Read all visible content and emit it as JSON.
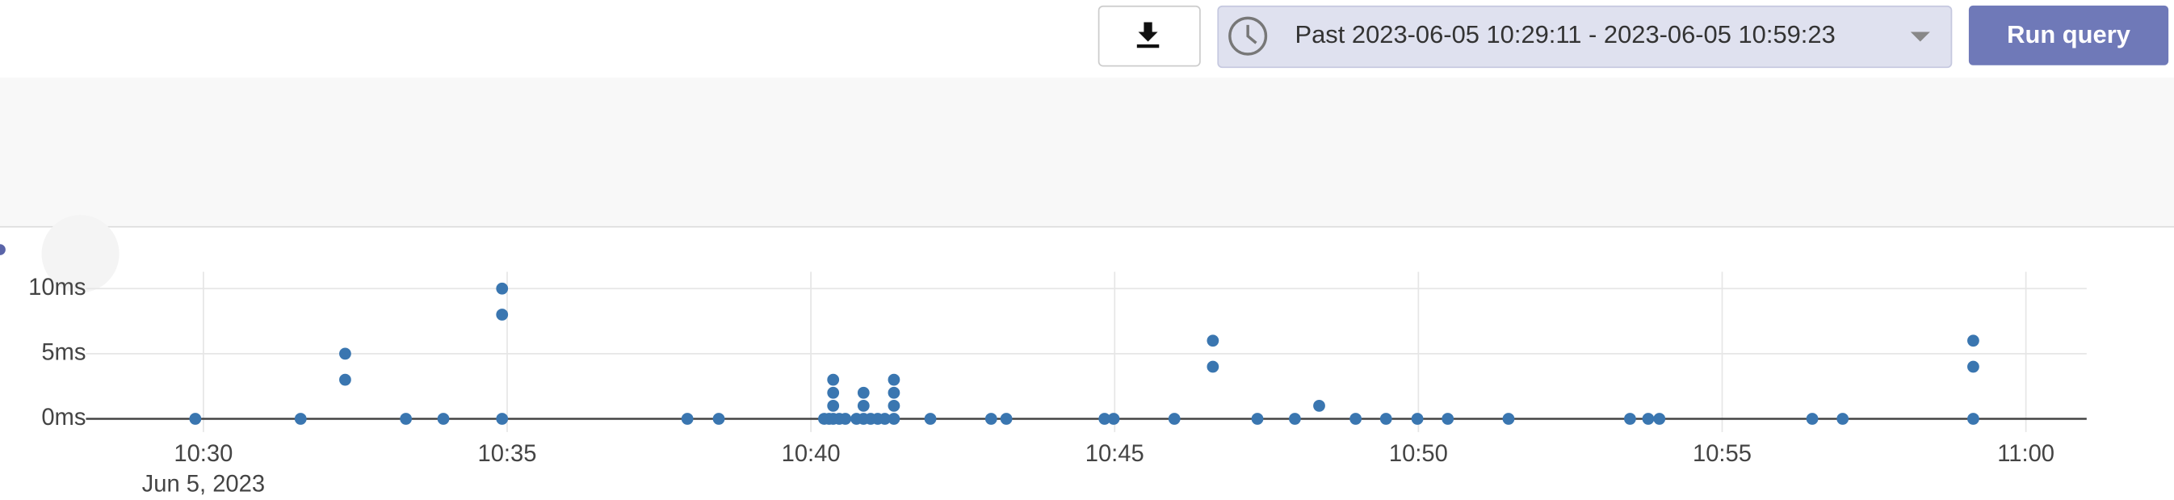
{
  "toolbar": {
    "time_range_label": "Past 2023-06-05 10:29:11 - 2023-06-05 10:59:23",
    "run_button": "Run query"
  },
  "chart_data": {
    "type": "scatter",
    "x": [
      "10:29:52",
      "10:31:36",
      "10:32:20",
      "10:32:20",
      "10:33:20",
      "10:33:57",
      "10:34:55",
      "10:34:55",
      "10:34:55",
      "10:37:58",
      "10:38:29",
      "10:40:13",
      "10:40:18",
      "10:40:22",
      "10:40:22",
      "10:40:22",
      "10:40:22",
      "10:40:28",
      "10:40:34",
      "10:40:45",
      "10:40:52",
      "10:40:52",
      "10:40:52",
      "10:40:59",
      "10:41:06",
      "10:41:13",
      "10:41:22",
      "10:41:22",
      "10:41:22",
      "10:41:22",
      "10:41:58",
      "10:42:58",
      "10:43:13",
      "10:44:50",
      "10:44:59",
      "10:45:59",
      "10:46:37",
      "10:46:37",
      "10:47:21",
      "10:47:58",
      "10:48:22",
      "10:48:58",
      "10:49:28",
      "10:49:59",
      "10:50:29",
      "10:51:29",
      "10:53:29",
      "10:53:47",
      "10:53:58",
      "10:56:29",
      "10:56:59",
      "10:59:08",
      "10:59:08",
      "10:59:08"
    ],
    "values": [
      0,
      0,
      5,
      3,
      0,
      0,
      10,
      8,
      0,
      0,
      0,
      0,
      0,
      3,
      2,
      1,
      0,
      0,
      0,
      0,
      2,
      1,
      0,
      0,
      0,
      0,
      3,
      2,
      1,
      0,
      0,
      0,
      0,
      0,
      0,
      0,
      6,
      4,
      0,
      0,
      1,
      0,
      0,
      0,
      0,
      0,
      0,
      0,
      0,
      0,
      0,
      6,
      4,
      0
    ],
    "color": "#3a76b0",
    "xlim": [
      "10:28:04",
      "11:01:00"
    ],
    "xticks": [
      "10:30",
      "10:35",
      "10:40",
      "10:45",
      "10:50",
      "10:55",
      "11:00"
    ],
    "x_date_label": "Jun 5, 2023",
    "ylim": [
      -0.8,
      11.5
    ],
    "yticks": [
      {
        "value": 0,
        "label": "0ms"
      },
      {
        "value": 5,
        "label": "5ms"
      },
      {
        "value": 10,
        "label": "10ms"
      }
    ],
    "grid": true
  }
}
